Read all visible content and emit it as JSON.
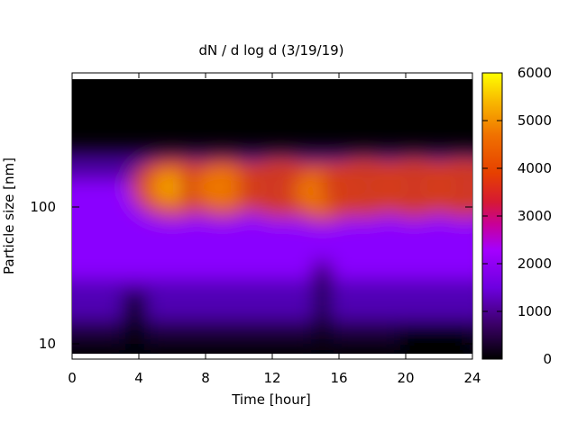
{
  "chart_data": {
    "type": "heatmap",
    "title": "dN / d log d (3/19/19)",
    "xlabel": "Time [hour]",
    "ylabel": "Particle size [nm]",
    "xlim": [
      0,
      24
    ],
    "ylim": [
      8,
      200
    ],
    "y_scale": "log",
    "x_ticks": [
      0,
      4,
      8,
      12,
      16,
      20,
      24
    ],
    "y_ticks": [
      10,
      100
    ],
    "colorbar": {
      "range": [
        0,
        6000
      ],
      "ticks": [
        0,
        1000,
        2000,
        3000,
        4000,
        5000,
        6000
      ],
      "colormap": "gnuplot"
    },
    "grid": false,
    "legend": "none",
    "mode_features": [
      {
        "time_hour": 6.0,
        "diameter_nm": 140,
        "dN_dlogd": 5200
      },
      {
        "time_hour": 9.0,
        "diameter_nm": 140,
        "dN_dlogd": 4300
      },
      {
        "time_hour": 12.5,
        "diameter_nm": 140,
        "dN_dlogd": 3900
      },
      {
        "time_hour": 15.0,
        "diameter_nm": 130,
        "dN_dlogd": 4200
      },
      {
        "time_hour": 17.5,
        "diameter_nm": 140,
        "dN_dlogd": 4000
      },
      {
        "time_hour": 20.5,
        "diameter_nm": 140,
        "dN_dlogd": 3000
      },
      {
        "time_hour": 23.5,
        "diameter_nm": 140,
        "dN_dlogd": 3900
      }
    ],
    "low_count_regions": [
      {
        "time_range": [
          3.0,
          4.5
        ],
        "diameter_range_nm": [
          8,
          25
        ]
      },
      {
        "time_range": [
          19.5,
          24.0
        ],
        "diameter_range_nm": [
          8,
          14
        ]
      },
      {
        "time_range": [
          14.5,
          15.5
        ],
        "diameter_range_nm": [
          8,
          40
        ]
      }
    ]
  }
}
